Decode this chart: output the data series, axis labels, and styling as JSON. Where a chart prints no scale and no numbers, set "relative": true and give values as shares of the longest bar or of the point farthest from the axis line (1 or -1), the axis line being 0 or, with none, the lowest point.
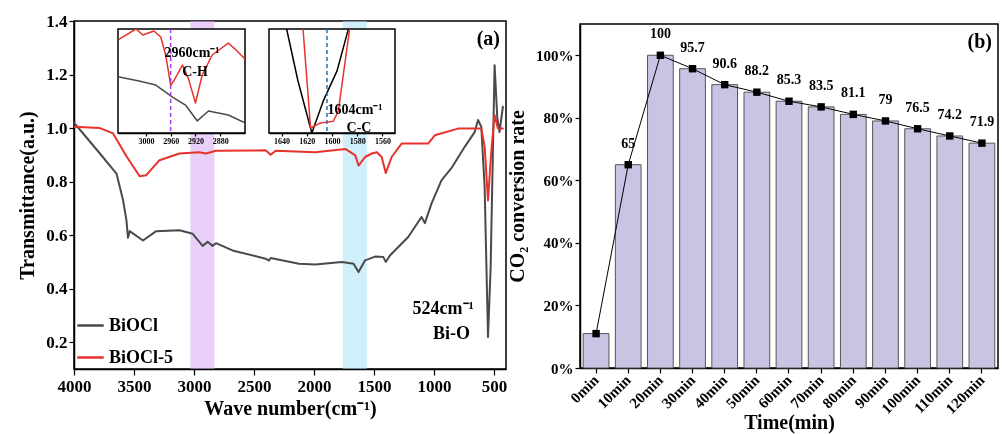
{
  "chart_data": [
    {
      "type": "line",
      "xlabel": "Wave number(cm⁻¹)",
      "ylabel": "Transmittance(a.u.)",
      "xlim": [
        4000,
        400
      ],
      "ylim": [
        0.1,
        1.4
      ],
      "xticks": [
        4000,
        3500,
        3000,
        2500,
        2000,
        1500,
        1000,
        500
      ],
      "yticks": [
        0.2,
        0.4,
        0.6,
        0.8,
        {
          "value": 1.0,
          "label": "1.0"
        },
        1.2,
        1.4
      ],
      "legend": "bottom left",
      "series": [
        {
          "name": "BiOCl",
          "color": "#4a4a4a",
          "x": [
            4000,
            3784,
            3646,
            3591,
            3563,
            3550,
            3536,
            3425,
            3315,
            3121,
            3011,
            2928,
            2886,
            2845,
            2817,
            2679,
            2403,
            2375,
            2361,
            2126,
            1988,
            1767,
            1670,
            1629,
            1574,
            1491,
            1422,
            1402,
            1367,
            1215,
            1104,
            1076,
            1021,
            938,
            855,
            744,
            661,
            633,
            606,
            578,
            550,
            528,
            495,
            473,
            454,
            426
          ],
          "values": [
            1.02,
            0.905,
            0.83,
            0.73,
            0.655,
            0.59,
            0.615,
            0.58,
            0.615,
            0.618,
            0.605,
            0.56,
            0.575,
            0.56,
            0.57,
            0.543,
            0.512,
            0.505,
            0.515,
            0.493,
            0.49,
            0.5,
            0.493,
            0.462,
            0.506,
            0.52,
            0.518,
            0.5,
            0.524,
            0.593,
            0.668,
            0.645,
            0.718,
            0.805,
            0.85,
            0.93,
            0.985,
            1.03,
            1.005,
            0.78,
            0.22,
            0.48,
            1.235,
            1.04,
            0.985,
            1.08
          ]
        },
        {
          "name": "BiOCl-5",
          "color": "#e8322c",
          "x": [
            4000,
            3784,
            3674,
            3563,
            3453,
            3398,
            3287,
            3121,
            2956,
            2900,
            2817,
            2403,
            2361,
            2320,
            1988,
            1739,
            1656,
            1629,
            1574,
            1518,
            1477,
            1436,
            1402,
            1353,
            1270,
            1187,
            1049,
            993,
            800,
            689,
            606,
            578,
            550,
            522,
            495,
            467,
            426
          ],
          "values": [
            1.005,
            1.0,
            0.98,
            0.895,
            0.82,
            0.824,
            0.88,
            0.905,
            0.91,
            0.905,
            0.915,
            0.917,
            0.9,
            0.915,
            0.91,
            0.922,
            0.898,
            0.86,
            0.892,
            0.905,
            0.91,
            0.892,
            0.832,
            0.892,
            0.942,
            0.942,
            0.942,
            0.973,
            0.998,
            0.998,
            0.998,
            0.93,
            0.73,
            0.917,
            1.048,
            0.998,
            0.998
          ]
        }
      ],
      "bands": [
        {
          "axis": "x",
          "from": 3030,
          "to": 2830,
          "color": "#d7a9f2"
        },
        {
          "axis": "x",
          "from": 1760,
          "to": 1560,
          "color": "#ace0f7"
        }
      ],
      "annotations": [
        "(a)",
        "524cm⁻¹",
        "Bi-O"
      ]
    },
    {
      "type": "line",
      "relative": true,
      "xlim": [
        3045,
        2840
      ],
      "xticks": [
        3000,
        2960,
        2920,
        2880
      ],
      "tick_labels": "x",
      "series": [
        {
          "color": "#e8322c",
          "x": [
            3043,
            3016,
            3005,
            2987,
            2976,
            2968,
            2960,
            2955,
            2941,
            2931,
            2920,
            2909,
            2893,
            2867,
            2856,
            2840
          ],
          "values": [
            0.903,
            1,
            0.942,
            0.981,
            0.923,
            0.75,
            0.461,
            0.5,
            0.653,
            0.518,
            0.288,
            0.558,
            0.75,
            0.865,
            0.807,
            0.712
          ]
        },
        {
          "color": "#4a4a4a",
          "x": [
            3043,
            3011,
            2984,
            2957,
            2936,
            2917,
            2899,
            2867,
            2840
          ],
          "values": [
            0.539,
            0.5,
            0.461,
            0.346,
            0.269,
            0.116,
            0.211,
            0.173,
            0.097
          ]
        }
      ],
      "ref_lines": [
        {
          "axis": "x",
          "value": 2960,
          "color": "#a23cf0",
          "line_style": "dashed"
        }
      ],
      "annotations": [
        "2960cm⁻¹",
        "C-H"
      ]
    },
    {
      "type": "line",
      "relative": true,
      "xlim": [
        1650,
        1550
      ],
      "xticks": [
        1640,
        1620,
        1600,
        1580,
        1560
      ],
      "tick_labels": "x",
      "series": [
        {
          "color": "#000000",
          "x": [
            1636,
            1627,
            1616,
            1607,
            1596,
            1587
          ],
          "values": [
            1,
            0.5,
            0,
            0.306,
            0.597,
            1
          ]
        },
        {
          "color": "#e8322c",
          "x": [
            1623,
            1617,
            1609,
            1599,
            1595,
            1586
          ],
          "values": [
            1,
            0.048,
            0.097,
            0.113,
            0.21,
            1
          ]
        }
      ],
      "ref_lines": [
        {
          "axis": "x",
          "value": 1604,
          "color": "#1f6fb5",
          "line_style": "dashed"
        }
      ],
      "annotations": [
        "1604cm⁻¹",
        "C-C"
      ]
    },
    {
      "type": "bar",
      "xlabel": "Time(min)",
      "ylabel": "CO₂ conversion rate",
      "categories": [
        "0min",
        "10min",
        "20min",
        "30min",
        "40min",
        "50min",
        "60min",
        "70min",
        "80min",
        "90min",
        "100min",
        "110min",
        "120min"
      ],
      "ylim": [
        0,
        110
      ],
      "yticks": [
        {
          "value": 0,
          "label": "0%"
        },
        {
          "value": 20,
          "label": "20%"
        },
        {
          "value": 40,
          "label": "40%"
        },
        {
          "value": 60,
          "label": "60%"
        },
        {
          "value": 80,
          "label": "80%"
        },
        {
          "value": 100,
          "label": "100%"
        }
      ],
      "series": [
        {
          "color": "#cbc3e3",
          "values": [
            11,
            65,
            100,
            95.7,
            90.6,
            88.2,
            85.3,
            83.5,
            81.1,
            79,
            76.5,
            74.2,
            71.9
          ]
        },
        {
          "type": "line",
          "color": "#000000",
          "marker": "square",
          "values": [
            11,
            65,
            100,
            95.7,
            90.6,
            88.2,
            85.3,
            83.5,
            81.1,
            79,
            76.5,
            74.2,
            71.9
          ],
          "value_labels": [
            null,
            "65",
            "100",
            "95.7",
            "90.6",
            "88.2",
            "85.3",
            "83.5",
            "81.1",
            "79",
            "76.5",
            "74.2",
            "71.9"
          ]
        }
      ],
      "annotations": [
        "(b)"
      ]
    }
  ]
}
